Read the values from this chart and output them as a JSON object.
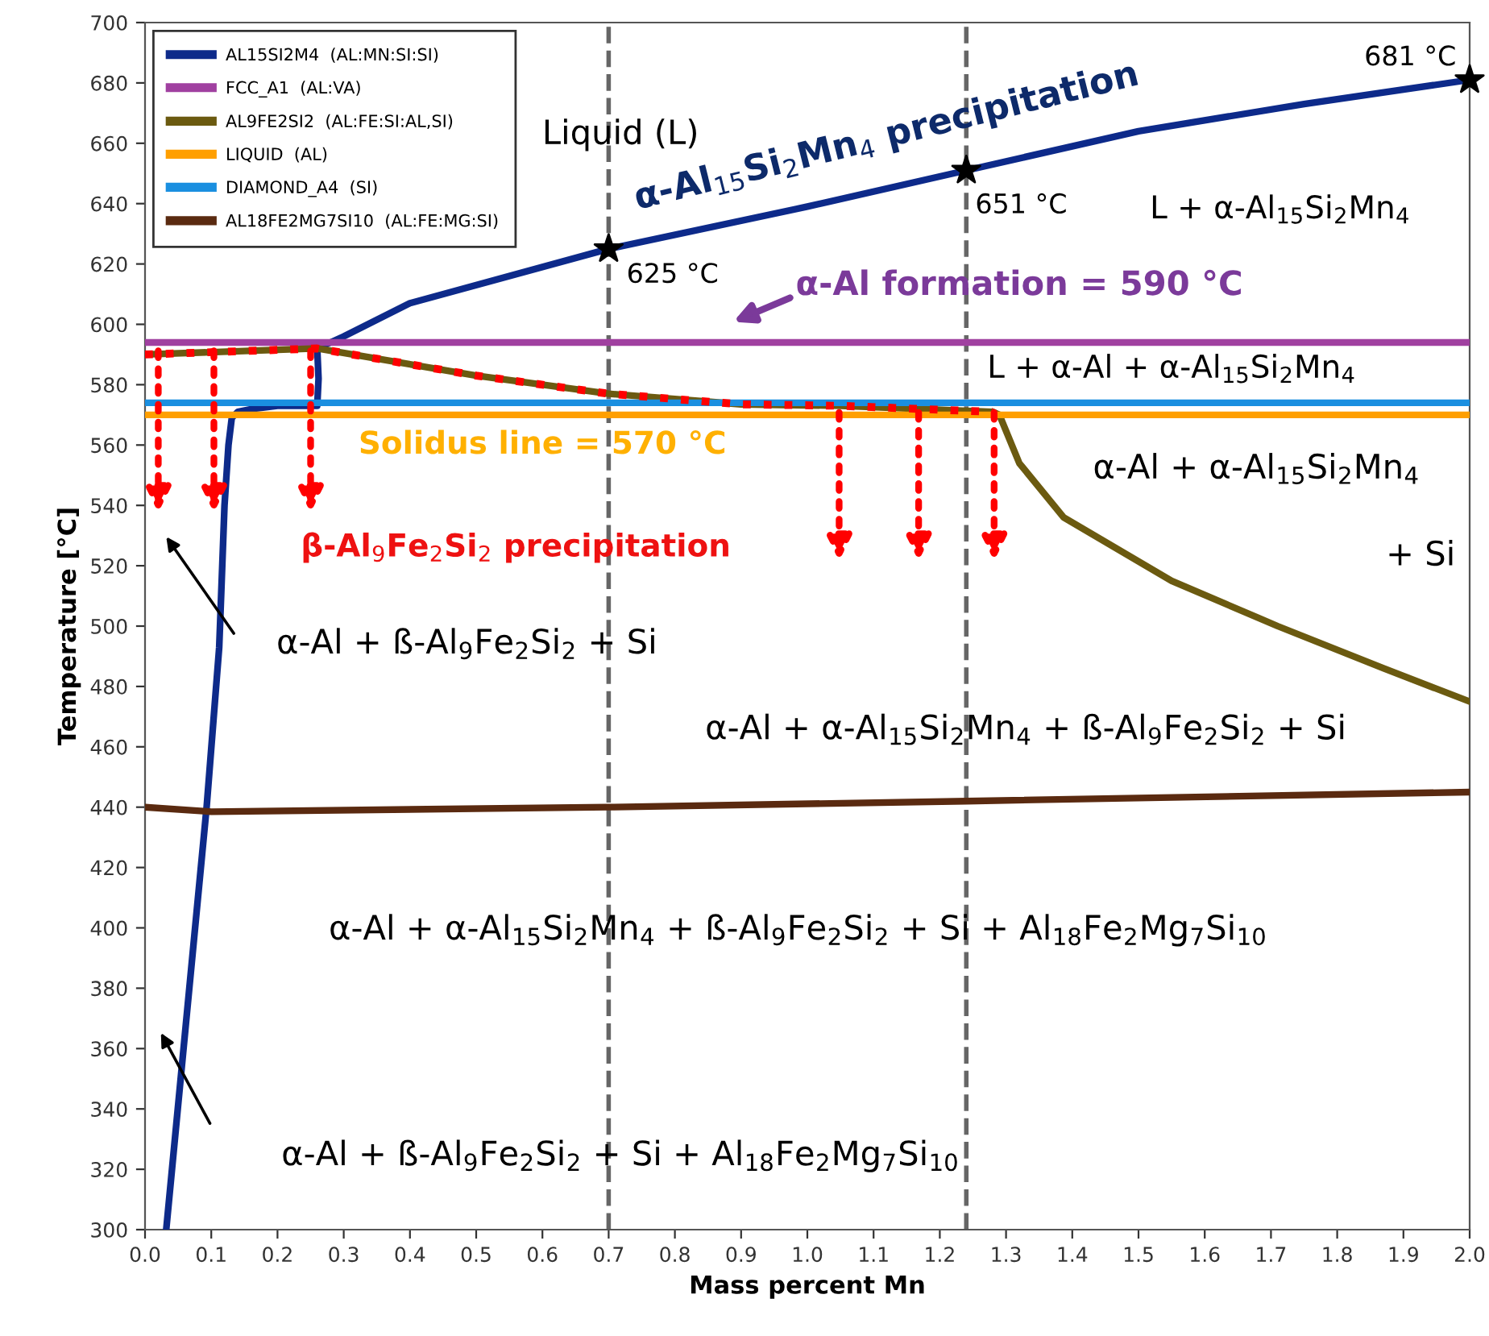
{
  "chart_data": {
    "type": "line",
    "xlabel": "Mass percent Mn",
    "ylabel": "Temperature [°C]",
    "xlim": [
      0,
      2.0
    ],
    "ylim": [
      300,
      700
    ],
    "xticks": [
      {
        "value": 0,
        "label": "0.0"
      },
      0.1,
      0.2,
      0.3,
      0.4,
      0.5,
      0.6,
      0.7,
      0.8,
      0.9,
      {
        "value": 1,
        "label": "1.0"
      },
      1.1,
      1.2,
      1.3,
      1.4,
      1.5,
      1.6,
      1.7,
      1.8,
      1.9,
      {
        "value": 2,
        "label": "2.0"
      }
    ],
    "yticks": [
      300,
      320,
      340,
      360,
      380,
      400,
      420,
      440,
      460,
      480,
      500,
      520,
      540,
      560,
      580,
      600,
      620,
      640,
      660,
      680,
      700
    ],
    "grid": false,
    "legend": "top left",
    "marker": "none",
    "line_style": "solid",
    "series": [
      {
        "name": "AL15SI2M4  (AL:MN:SI:SI)",
        "color": "#0d2a8a",
        "x": [
          0.032,
          0.093,
          0.112,
          0.12,
          0.126,
          0.131,
          0.14,
          0.163,
          0.2,
          0.26,
          0.262,
          0.26,
          0.3,
          0.4,
          0.7,
          1.0,
          1.24,
          1.5,
          1.75,
          2.0
        ],
        "values": [
          300,
          440,
          493,
          540,
          560,
          569,
          571,
          572,
          573,
          573,
          582,
          592,
          596,
          607,
          625,
          639,
          651,
          664,
          673,
          681
        ]
      },
      {
        "name": "FCC_A1  (AL:VA)",
        "color": "#a040a0",
        "x": [
          0,
          2.0
        ],
        "values": [
          594,
          594
        ]
      },
      {
        "name": "AL9FE2SI2  (AL:FE:SI:AL,SI)",
        "color": "#6b5a10",
        "x": [
          0,
          0.26,
          0.5,
          0.7,
          0.9,
          1.05,
          1.28,
          1.29,
          1.32,
          1.387,
          1.55,
          1.71,
          1.87,
          2.0
        ],
        "values": [
          590,
          592,
          583,
          577,
          573.5,
          573,
          571,
          570,
          554,
          536,
          515,
          500,
          486,
          475
        ]
      },
      {
        "name": "LIQUID  (AL)",
        "color": "#ff9f00",
        "x": [
          0,
          2.0
        ],
        "values": [
          570,
          570
        ]
      },
      {
        "name": "DIAMOND_A4  (SI)",
        "color": "#1a8fe0",
        "x": [
          0,
          2.0
        ],
        "values": [
          574,
          574
        ]
      },
      {
        "name": "AL18FE2MG7SI10  (AL:FE:MG:SI)",
        "color": "#5a2a10",
        "x": [
          0,
          0.1,
          0.7,
          1.24,
          2.0
        ],
        "values": [
          440,
          438.5,
          440,
          442,
          445
        ]
      },
      {
        "color": "#ff0000",
        "line_style": "dotted",
        "x": [
          0,
          0.26,
          0.5,
          0.7,
          0.9,
          1.05,
          1.28
        ],
        "values": [
          590,
          592,
          583,
          577,
          573.5,
          573,
          571
        ]
      },
      {
        "type": "scatter",
        "marker": "star",
        "color": "#000000",
        "x": [
          0.7,
          1.24,
          2.0
        ],
        "values": [
          625,
          651,
          681
        ]
      }
    ],
    "ref_lines": [
      {
        "axis": "x",
        "value": 0.7,
        "color": "#666666",
        "line_style": "dashed"
      },
      {
        "axis": "x",
        "value": 1.24,
        "color": "#666666",
        "line_style": "dashed"
      }
    ],
    "annotations": [
      "Liquid (L)",
      "α-Al$_{15}$Si$_{2}$Mn$_{4}$ precipitation",
      {
        "text": "625 °C",
        "x": 0.7,
        "y": 625
      },
      {
        "text": "651 °C",
        "x": 1.24,
        "y": 651
      },
      {
        "text": "681 °C",
        "x": 2.0,
        "y": 681
      },
      "L + α-Al$_{15}$Si$_{2}$Mn$_{4}$",
      "α-Al formation = 590 °C",
      "L + α-Al + α-Al$_{15}$Si$_{2}$Mn$_{4}$",
      "Solidus line = 570 °C",
      "β-Al$_{9}$Fe$_{2}$Si$_{2}$ precipitation",
      "α-Al + α-Al$_{15}$Si$_{2}$Mn$_{4}$",
      "+ Si",
      "α-Al + ß-Al$_{9}$Fe$_{2}$Si$_{2}$ + Si",
      "α-Al + α-Al$_{15}$Si$_{2}$Mn$_{4}$ + ß-Al$_{9}$Fe$_{2}$Si$_{2}$ + Si",
      "α-Al + α-Al$_{15}$Si$_{2}$Mn$_{4}$ + ß-Al$_{9}$Fe$_{2}$Si$_{2}$ + Si + Al$_{18}$Fe$_{2}$Mg$_{7}$Si$_{10}$",
      "α-Al + ß-Al$_{9}$Fe$_{2}$Si$_{2}$ + Si + Al$_{18}$Fe$_{2}$Mg$_{7}$Si$_{10}$"
    ]
  }
}
